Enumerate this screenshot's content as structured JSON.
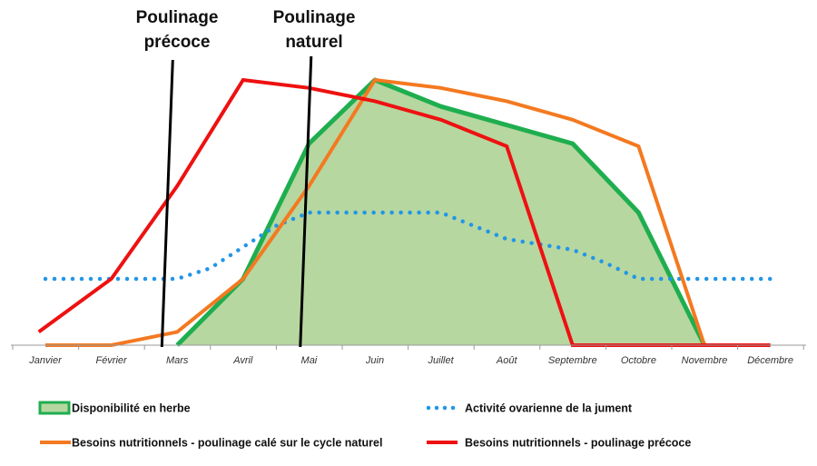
{
  "chart_data": {
    "type": "line",
    "title": "",
    "xlabel": "",
    "ylabel": "",
    "grid": false,
    "legend_position": "bottom",
    "ylim": [
      0,
      100
    ],
    "categories": [
      "Janvier",
      "Février",
      "Mars",
      "Avril",
      "Mai",
      "Juin",
      "Juillet",
      "Août",
      "Septembre",
      "Octobre",
      "Novembre",
      "Décembre"
    ],
    "series": [
      {
        "name": "Disponibilité en herbe",
        "kind": "area",
        "color": "#b6d7a0",
        "stroke": "#1fae4f",
        "x": [
          2,
          3,
          4,
          5,
          6,
          7,
          8,
          9,
          10
        ],
        "values": [
          0,
          25,
          76,
          100,
          90,
          83,
          76,
          50,
          0
        ]
      },
      {
        "name": "Activité ovarienne  de la jument",
        "kind": "dotted",
        "color": "#2196e8",
        "x": [
          0,
          1,
          2,
          2.5,
          3,
          3.5,
          4,
          5,
          6,
          6.5,
          7,
          7.5,
          8,
          8.5,
          9,
          10,
          11
        ],
        "values": [
          25,
          25,
          25,
          29,
          37,
          45,
          50,
          50,
          50,
          45,
          40,
          38,
          36,
          31,
          25,
          25,
          25
        ]
      },
      {
        "name": "Besoins  nutritionnels - poulinage calé sur le cycle naturel",
        "kind": "line",
        "color": "#f47920",
        "x": [
          0,
          1,
          2,
          3,
          4,
          5,
          6,
          7,
          8,
          9,
          10,
          11
        ],
        "values": [
          0,
          0,
          5,
          25,
          60,
          100,
          97,
          92,
          85,
          75,
          0,
          0
        ]
      },
      {
        "name": "Besoins nutritionnels - poulinage précoce",
        "kind": "line",
        "color": "#ee1111",
        "x": [
          -0.1,
          1,
          2,
          3,
          4,
          5,
          6,
          7,
          8,
          9,
          10,
          11
        ],
        "values": [
          5,
          25,
          60,
          100,
          97,
          92,
          85,
          75,
          0,
          0,
          0,
          0
        ]
      }
    ],
    "annotations": [
      {
        "text_lines": [
          "Poulinage",
          "précoce"
        ],
        "x": 1.85
      },
      {
        "text_lines": [
          "Poulinage",
          "naturel"
        ],
        "x": 3.95
      }
    ]
  }
}
